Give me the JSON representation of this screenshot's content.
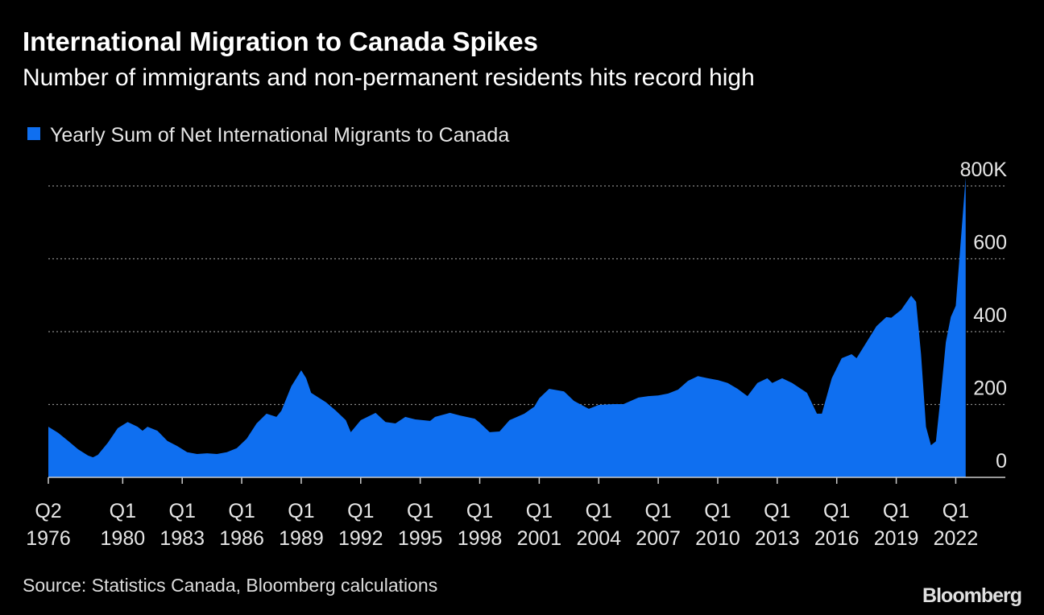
{
  "chart_data": {
    "type": "area",
    "title": "International Migration to Canada Spikes",
    "subtitle": "Number of immigrants and non-permanent residents hits record high",
    "source": "Source: Statistics Canada, Bloomberg calculations",
    "logo": "Bloomberg",
    "legend": "top-left",
    "grid": true,
    "x": [
      1976.25,
      1976.75,
      1977.25,
      1977.75,
      1978.25,
      1978.5,
      1978.75,
      1979.25,
      1979.75,
      1980.25,
      1980.75,
      1981.0,
      1981.25,
      1981.75,
      1982.25,
      1982.75,
      1983.25,
      1983.75,
      1984.25,
      1984.75,
      1985.25,
      1985.75,
      1986.25,
      1986.75,
      1987.25,
      1987.75,
      1988.0,
      1988.5,
      1989.0,
      1989.25,
      1989.5,
      1990.25,
      1990.75,
      1991.25,
      1991.5,
      1992.0,
      1992.75,
      1993.25,
      1993.75,
      1994.25,
      1994.75,
      1995.5,
      1995.75,
      1996.5,
      1997.0,
      1997.75,
      1998.0,
      1998.5,
      1999.0,
      1999.5,
      2000.25,
      2000.75,
      2001.0,
      2001.5,
      2002.25,
      2002.75,
      2003.5,
      2004.0,
      2004.75,
      2005.25,
      2006.0,
      2006.5,
      2007.0,
      2007.5,
      2008.0,
      2008.5,
      2009.0,
      2009.5,
      2010.0,
      2010.5,
      2011.0,
      2011.5,
      2012.0,
      2012.5,
      2012.75,
      2013.25,
      2013.75,
      2014.5,
      2015.0,
      2015.25,
      2015.75,
      2016.25,
      2016.75,
      2017.0,
      2017.5,
      2018.0,
      2018.5,
      2018.75,
      2019.25,
      2019.75,
      2020.0,
      2020.25,
      2020.5,
      2020.75,
      2021.0,
      2021.25,
      2021.5,
      2021.75,
      2022.0,
      2022.25,
      2022.5
    ],
    "series": [
      {
        "name": "Yearly Sum of Net International Migrants to Canada",
        "color": "#0f6ff0",
        "values": [
          139,
          122,
          100,
          77,
          60,
          55,
          62,
          95,
          135,
          152,
          139,
          128,
          139,
          128,
          100,
          86,
          69,
          64,
          66,
          64,
          69,
          80,
          106,
          148,
          175,
          166,
          183,
          250,
          294,
          272,
          232,
          206,
          183,
          157,
          124,
          157,
          177,
          152,
          148,
          166,
          159,
          155,
          166,
          177,
          170,
          161,
          150,
          124,
          126,
          157,
          175,
          194,
          217,
          243,
          236,
          210,
          188,
          199,
          201,
          201,
          219,
          223,
          225,
          230,
          241,
          265,
          278,
          272,
          267,
          259,
          243,
          223,
          259,
          272,
          259,
          272,
          259,
          232,
          175,
          175,
          272,
          327,
          338,
          327,
          371,
          415,
          440,
          438,
          460,
          499,
          482,
          338,
          139,
          88,
          99,
          228,
          371,
          440,
          471,
          647,
          824
        ]
      }
    ],
    "xlim": [
      1976.25,
      2024.5
    ],
    "xticks": [
      {
        "value": 1976.25,
        "label": "Q2 1976"
      },
      {
        "value": 1980,
        "label": "Q1 1980"
      },
      {
        "value": 1983,
        "label": "Q1 1983"
      },
      {
        "value": 1986,
        "label": "Q1 1986"
      },
      {
        "value": 1989,
        "label": "Q1 1989"
      },
      {
        "value": 1992,
        "label": "Q1 1992"
      },
      {
        "value": 1995,
        "label": "Q1 1995"
      },
      {
        "value": 1998,
        "label": "Q1 1998"
      },
      {
        "value": 2001,
        "label": "Q1 2001"
      },
      {
        "value": 2004,
        "label": "Q1 2004"
      },
      {
        "value": 2007,
        "label": "Q1 2007"
      },
      {
        "value": 2010,
        "label": "Q1 2010"
      },
      {
        "value": 2013,
        "label": "Q1 2013"
      },
      {
        "value": 2016,
        "label": "Q1 2016"
      },
      {
        "value": 2019,
        "label": "Q1 2019"
      },
      {
        "value": 2022,
        "label": "Q1 2022"
      }
    ],
    "ylim": [
      0,
      850
    ],
    "yticks": [
      0,
      200,
      400,
      600,
      {
        "value": 800,
        "label": "800K"
      }
    ]
  }
}
